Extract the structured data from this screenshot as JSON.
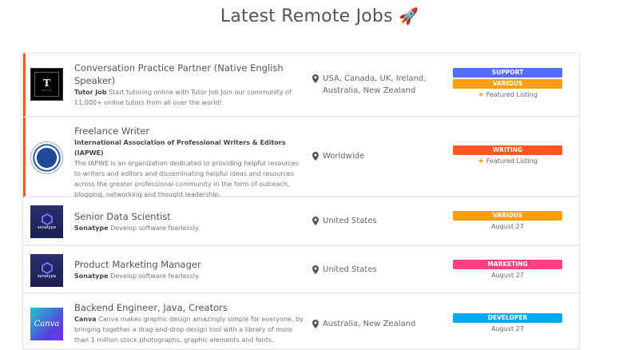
{
  "page": {
    "title": "Latest Remote Jobs",
    "title_icon": "rocket-icon",
    "title_emoji": "🚀"
  },
  "colors": {
    "featured_border": "#ff5722",
    "support": "#536dfe",
    "various": "#ff9f00",
    "writing": "#ff5722",
    "marketing": "#ff4081",
    "developer": "#03a9f4"
  },
  "jobs": [
    {
      "title": "Conversation Practice Partner (Native English Speaker)",
      "company": "Tutor Job",
      "description": "Start tutoring online with Tutor Job Join our community of 11,000+ online tutors from all over the world!",
      "location": "USA, Canada, UK, Ireland, Australia, New Zealand",
      "tags": [
        "SUPPORT",
        "VARIOUS"
      ],
      "meta": "Featured Listing",
      "featured": true,
      "logo_text": "T",
      "logo_caption": "Tutor Job"
    },
    {
      "title": "Freelance Writer",
      "company": "International Association of Professional Writers & Editors (IAPWE)",
      "description": "The IAPWE is an organization dedicated to providing helpful resources to writers and editors and disseminating helpful ideas and resources across the greater professional community in the form of outreach, blogging, networking and thought leadership.",
      "location": "Worldwide",
      "tags": [
        "WRITING"
      ],
      "meta": "Featured Listing",
      "featured": true
    },
    {
      "title": "Senior Data Scientist",
      "company": "Sonatype",
      "description": "Develop software fearlessly.",
      "location": "United States",
      "tags": [
        "VARIOUS"
      ],
      "meta": "August 27",
      "logo_text": "sonatype"
    },
    {
      "title": "Product Marketing Manager",
      "company": "Sonatype",
      "description": "Develop software fearlessly.",
      "location": "United States",
      "tags": [
        "MARKETING"
      ],
      "meta": "August 27",
      "logo_text": "sonatype"
    },
    {
      "title": "Backend Engineer, Java, Creators",
      "company": "Canva",
      "description": "Canva makes graphic design amazingly simple for everyone, by bringing together a drag-and-drop design tool with a library of more than 1 million stock photographs, graphic elements and fonts.",
      "location": "Australia, New Zealand",
      "tags": [
        "DEVELOPER"
      ],
      "meta": "August 27",
      "logo_text": "Canva"
    }
  ]
}
